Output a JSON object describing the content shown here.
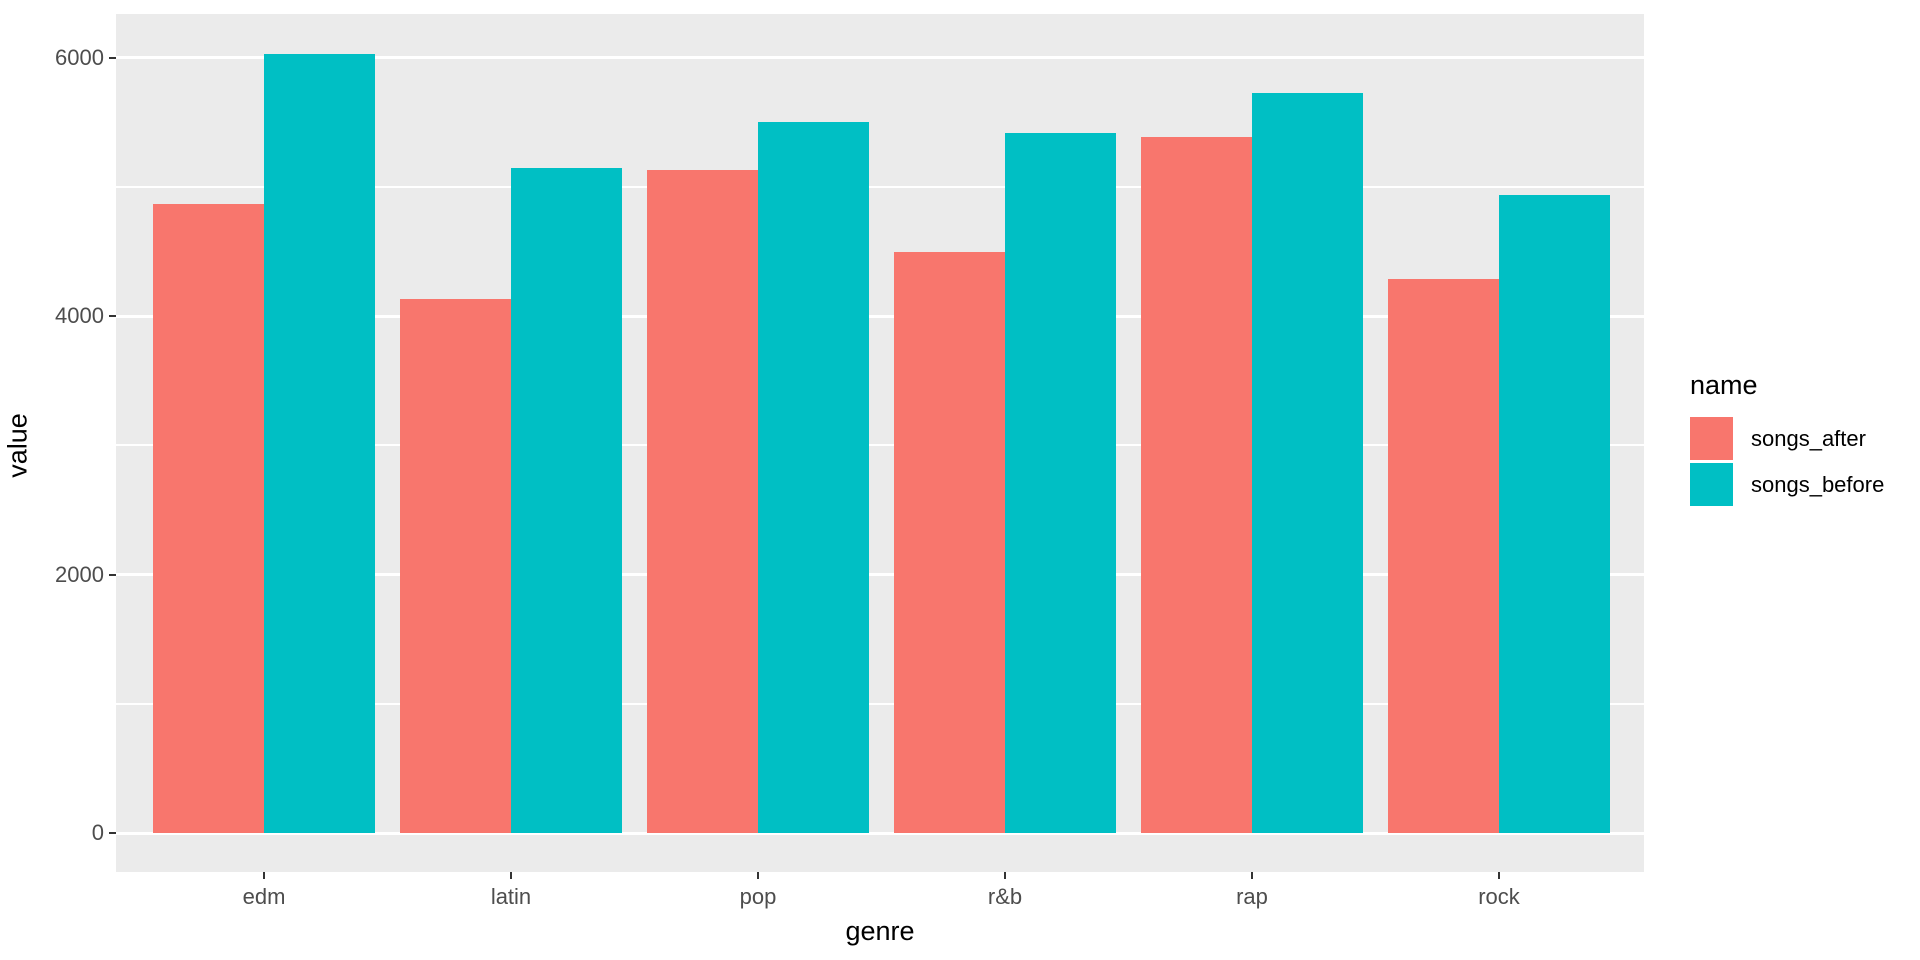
{
  "chart_data": {
    "type": "bar",
    "title": "",
    "xlabel": "genre",
    "ylabel": "value",
    "categories": [
      "edm",
      "latin",
      "pop",
      "r&b",
      "rap",
      "rock"
    ],
    "series": [
      {
        "name": "songs_after",
        "color": "#F8766D",
        "values": [
          4870,
          4130,
          5130,
          4500,
          5390,
          4290
        ]
      },
      {
        "name": "songs_before",
        "color": "#00BFC4",
        "values": [
          6030,
          5150,
          5500,
          5420,
          5730,
          4940
        ]
      }
    ],
    "ylim": [
      0,
      6330
    ],
    "y_ticks": [
      {
        "value": 0,
        "label": "0"
      },
      {
        "value": 2000,
        "label": "2000"
      },
      {
        "value": 4000,
        "label": "4000"
      },
      {
        "value": 6000,
        "label": "6000"
      }
    ],
    "y_minor_gridlines": [
      1000,
      3000,
      5000
    ],
    "grid": true,
    "legend_position": "right",
    "legend_title": "name",
    "colors": {
      "panel_background": "#EBEBEB",
      "gridline": "#FFFFFF",
      "tick_mark": "#333333",
      "tick_label": "#4D4D4D",
      "axis_title": "#000000"
    }
  }
}
